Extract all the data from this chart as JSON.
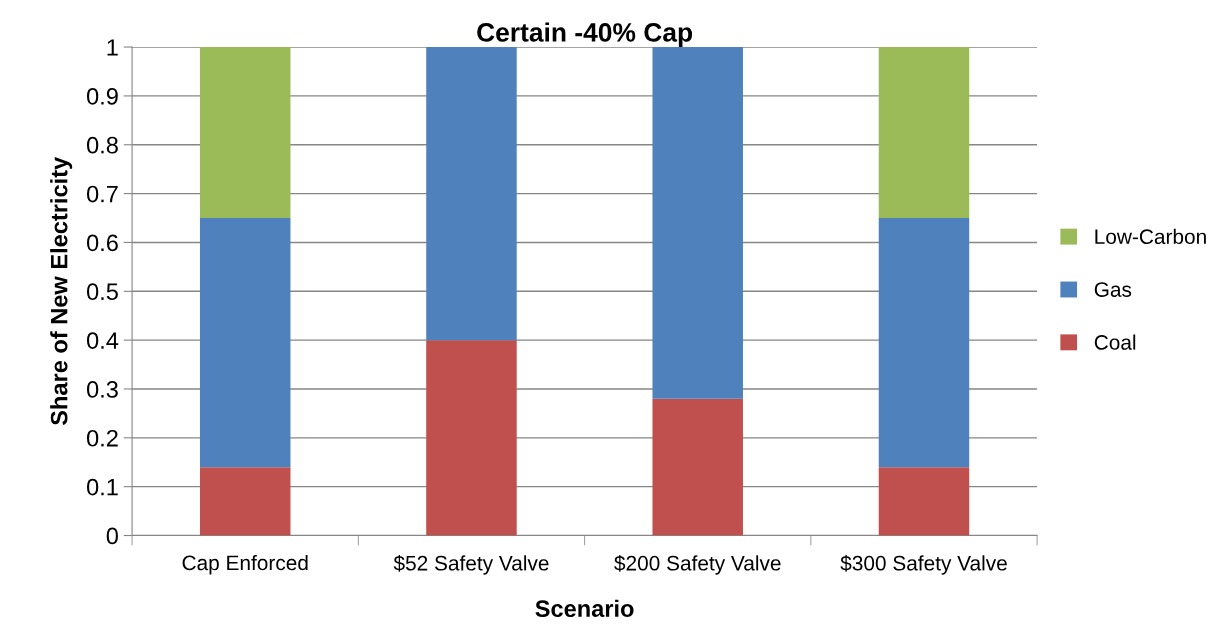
{
  "chart_data": {
    "type": "bar",
    "title": "Certain -40% Cap",
    "xlabel": "Scenario",
    "ylabel": "Share of New Electricity",
    "categories": [
      "Cap Enforced",
      "$52 Safety Valve",
      "$200 Safety Valve",
      "$300 Safety Valve"
    ],
    "stacked": true,
    "series": [
      {
        "name": "Coal",
        "color": "#c0504d",
        "values": [
          0.14,
          0.4,
          0.28,
          0.14
        ]
      },
      {
        "name": "Gas",
        "color": "#4f81bd",
        "values": [
          0.51,
          0.6,
          0.72,
          0.51
        ]
      },
      {
        "name": "Low-Carbon",
        "color": "#9bbb59",
        "values": [
          0.35,
          0,
          0,
          0.35
        ]
      }
    ],
    "ylim": [
      0,
      1
    ],
    "yticks": [
      0,
      0.1,
      0.2,
      0.3,
      0.4,
      0.5,
      0.6,
      0.7,
      0.8,
      0.9,
      1
    ],
    "grid": "y",
    "legend": "right"
  }
}
